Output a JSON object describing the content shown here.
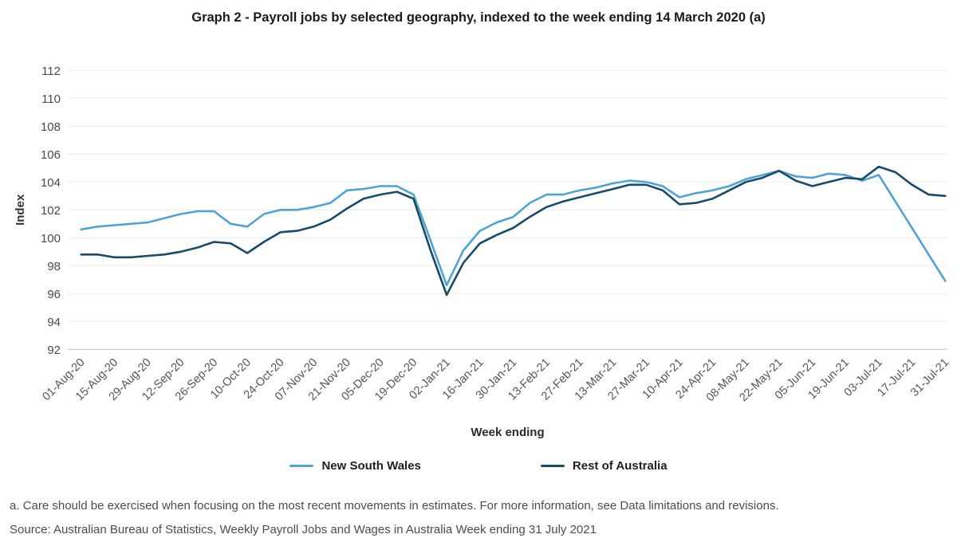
{
  "title": "Graph 2 - Payroll jobs by selected geography, indexed to the week ending 14 March 2020 (a)",
  "footnote": "a. Care should be exercised when focusing on the most recent movements in estimates. For more information, see Data limitations and revisions.",
  "source": "Source: Australian Bureau of Statistics, Weekly Payroll Jobs and Wages in Australia Week ending 31 July 2021",
  "chart_data": {
    "type": "line",
    "title": "Graph 2 - Payroll jobs by selected geography, indexed to the week ending 14 March 2020 (a)",
    "xlabel": "Week ending",
    "ylabel": "Index",
    "ylim": [
      92,
      112
    ],
    "ytick_step": 2,
    "grid": "horizontal",
    "legend_position": "bottom",
    "x_tick_labels": [
      "01-Aug-20",
      "15-Aug-20",
      "29-Aug-20",
      "12-Sep-20",
      "26-Sep-20",
      "10-Oct-20",
      "24-Oct-20",
      "07-Nov-20",
      "21-Nov-20",
      "05-Dec-20",
      "19-Dec-20",
      "02-Jan-21",
      "16-Jan-21",
      "30-Jan-21",
      "13-Feb-21",
      "27-Feb-21",
      "13-Mar-21",
      "27-Mar-21",
      "10-Apr-21",
      "24-Apr-21",
      "08-May-21",
      "22-May-21",
      "05-Jun-21",
      "19-Jun-21",
      "03-Jul-21",
      "17-Jul-21",
      "31-Jul-21"
    ],
    "points_per_tick_interval": 2,
    "x_frequency": "weekly",
    "series": [
      {
        "name": "New South Wales",
        "color": "#4fa3d5",
        "values": [
          100.6,
          100.8,
          100.9,
          101.0,
          101.1,
          101.4,
          101.7,
          101.9,
          101.9,
          101.0,
          100.8,
          101.7,
          102.0,
          102.0,
          102.2,
          102.5,
          103.4,
          103.5,
          103.7,
          103.7,
          103.1,
          99.9,
          96.6,
          99.1,
          100.5,
          101.1,
          101.5,
          102.5,
          103.1,
          103.1,
          103.4,
          103.6,
          103.9,
          104.1,
          104.0,
          103.7,
          102.9,
          103.2,
          103.4,
          103.7,
          104.2,
          104.5,
          104.8,
          104.4,
          104.3,
          104.6,
          104.5,
          104.1,
          104.5,
          102.6,
          100.7,
          98.8,
          96.9
        ]
      },
      {
        "name": "Rest of Australia",
        "color": "#1a4a6b",
        "values": [
          98.8,
          98.8,
          98.6,
          98.6,
          98.7,
          98.8,
          99.0,
          99.3,
          99.7,
          99.6,
          98.9,
          99.7,
          100.4,
          100.5,
          100.8,
          101.3,
          102.1,
          102.8,
          103.1,
          103.3,
          102.8,
          99.2,
          95.9,
          98.2,
          99.6,
          100.2,
          100.7,
          101.5,
          102.2,
          102.6,
          102.9,
          103.2,
          103.5,
          103.8,
          103.8,
          103.4,
          102.4,
          102.5,
          102.8,
          103.4,
          104.0,
          104.3,
          104.8,
          104.1,
          103.7,
          104.0,
          104.3,
          104.2,
          105.1,
          104.7,
          103.8,
          103.1,
          103.0
        ]
      }
    ],
    "style": {
      "gridline_color": "#ececec",
      "baseline_color": "#c8d2e6",
      "background": "#ffffff",
      "line_width": 2.6
    }
  }
}
